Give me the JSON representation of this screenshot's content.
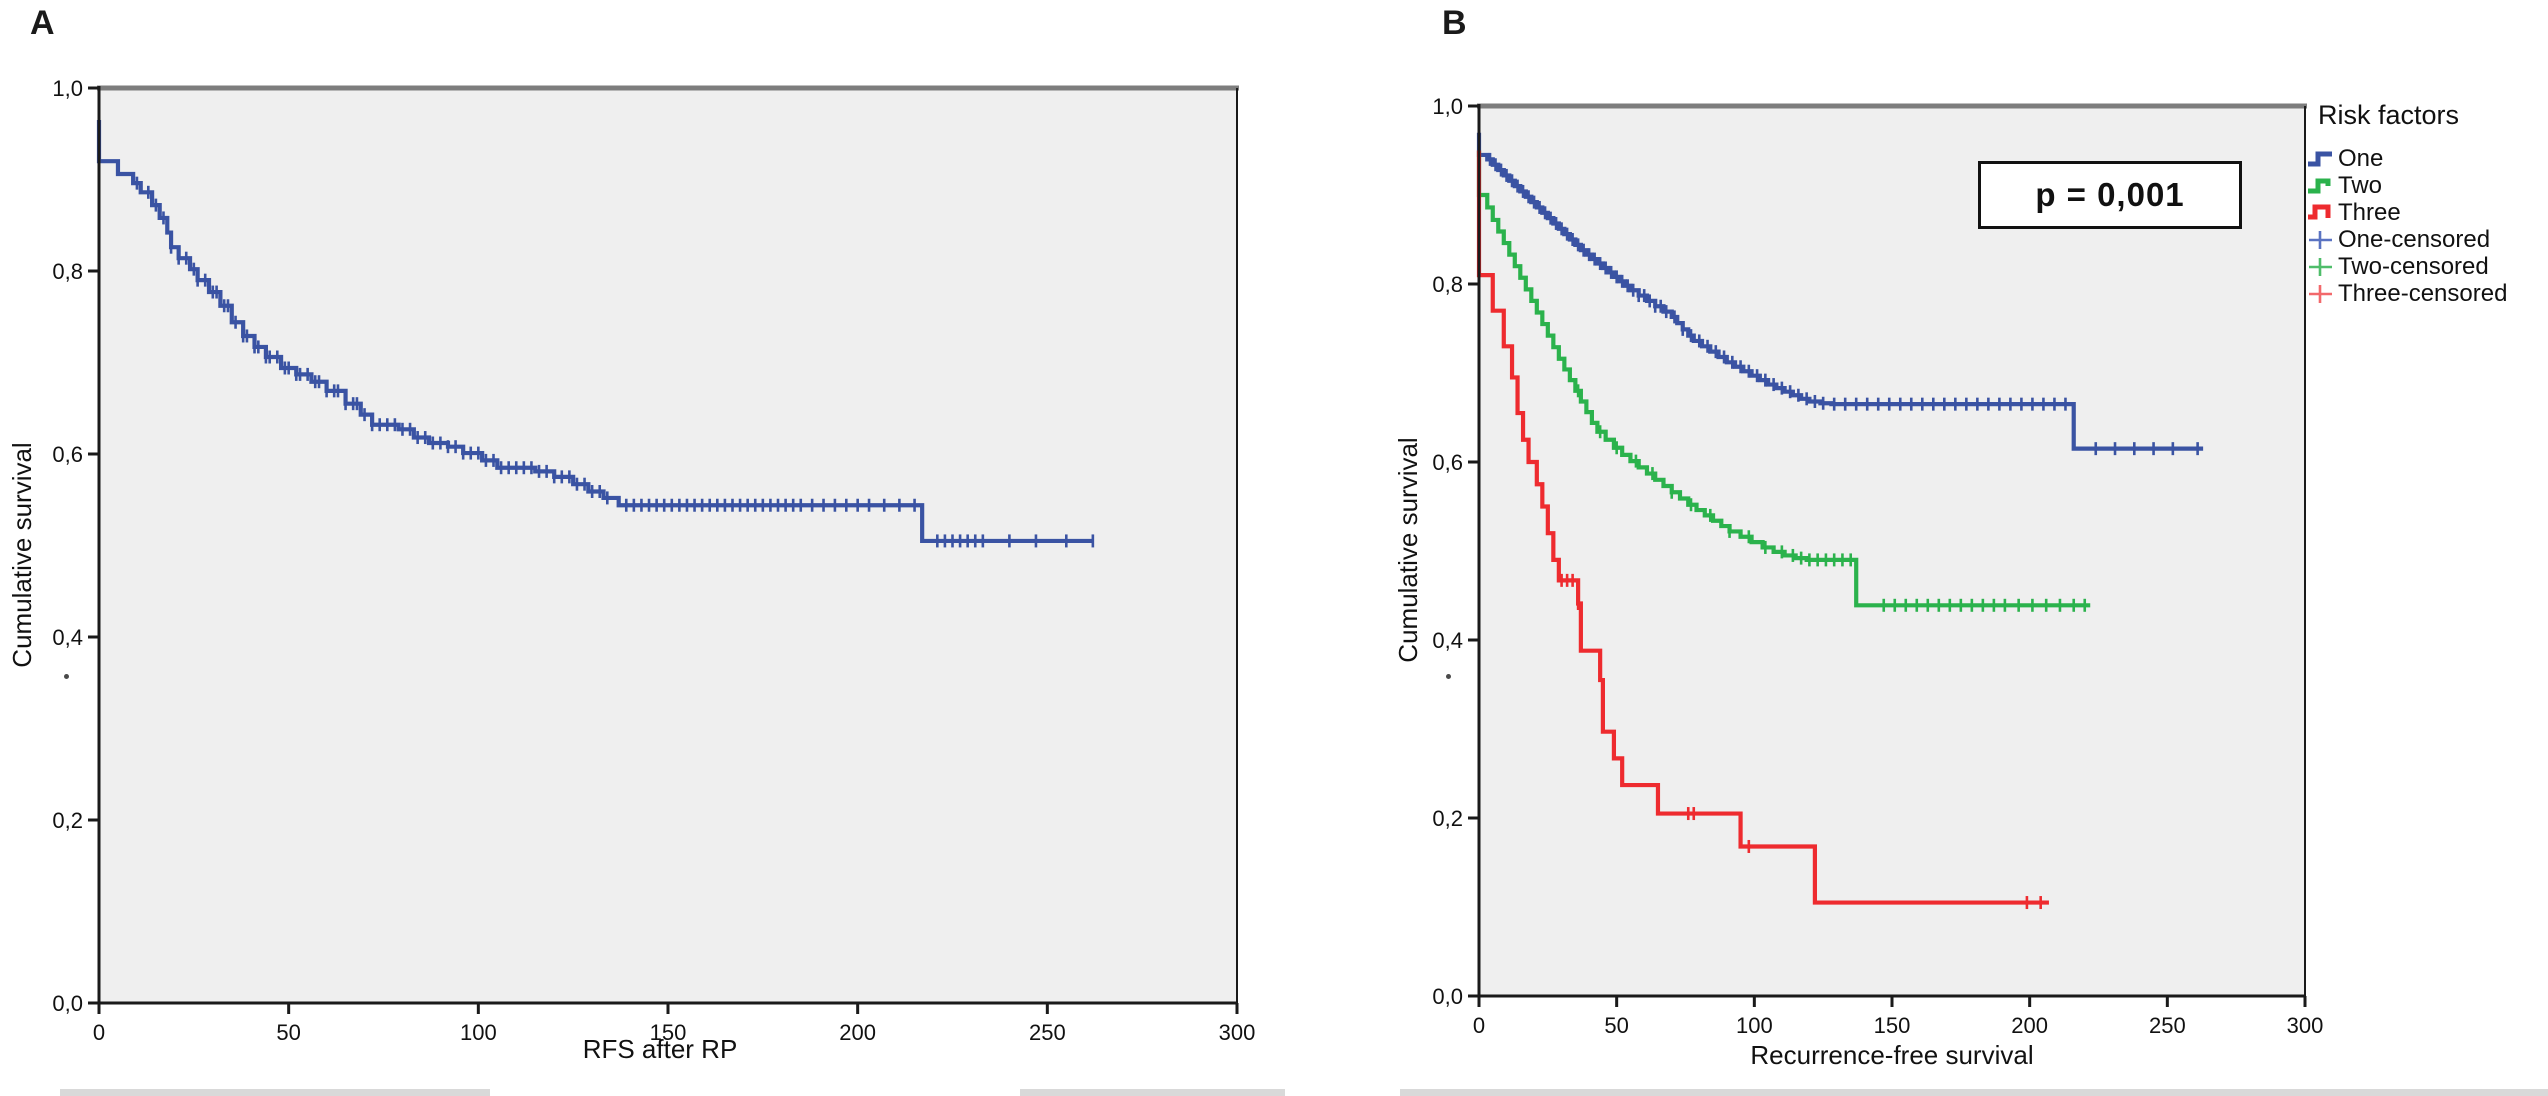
{
  "figure": {
    "background": "#ffffff",
    "plot_bg": "#efefef",
    "frame_color": "#1a1a1a",
    "top_frame_color": "#7d7d7d",
    "tick_label_color": "#111111"
  },
  "panels": [
    {
      "id": "A",
      "label": "A"
    },
    {
      "id": "B",
      "label": "B"
    }
  ],
  "legend": {
    "title": "Risk factors",
    "items": [
      {
        "label": "One",
        "marker": "step-one",
        "color": "#3a53a3"
      },
      {
        "label": "Two",
        "marker": "step-two",
        "color": "#2bb24c"
      },
      {
        "label": "Three",
        "marker": "step-three",
        "color": "#ee2b2f"
      },
      {
        "label": "One-censored",
        "marker": "plus",
        "color": "#5a73c2"
      },
      {
        "label": "Two-censored",
        "marker": "plus",
        "color": "#4fbd6a"
      },
      {
        "label": "Three-censored",
        "marker": "plus",
        "color": "#f2686b"
      }
    ]
  },
  "annotation": {
    "p_value_label": "p = 0,001"
  },
  "chart_data": [
    {
      "type": "line",
      "subtype": "kaplan-meier-step",
      "panel": "A",
      "title": "",
      "xlabel": "RFS after RP",
      "ylabel": "Cumulative survival",
      "xlim": [
        0,
        300
      ],
      "ylim": [
        0.0,
        1.0
      ],
      "grid": false,
      "x_ticks": [
        0,
        50,
        100,
        150,
        200,
        250,
        300
      ],
      "x_tick_labels": [
        "0",
        "50",
        "100",
        "150",
        "200",
        "250",
        "300"
      ],
      "y_ticks": [
        0.0,
        0.2,
        0.4,
        0.6,
        0.8,
        1.0
      ],
      "y_tick_labels": [
        "0,0",
        "0,2",
        "0,4",
        "0,6",
        "0,8",
        "1,0"
      ],
      "series": [
        {
          "name": "",
          "color": "#3a53a3",
          "start": 0.965,
          "steps": [
            [
              0,
              0.92
            ],
            [
              5,
              0.906
            ],
            [
              9,
              0.896
            ],
            [
              11,
              0.886
            ],
            [
              14,
              0.872
            ],
            [
              16,
              0.858
            ],
            [
              18,
              0.842
            ],
            [
              19,
              0.826
            ],
            [
              21,
              0.814
            ],
            [
              24,
              0.802
            ],
            [
              26,
              0.79
            ],
            [
              29,
              0.777
            ],
            [
              32,
              0.762
            ],
            [
              35,
              0.744
            ],
            [
              38,
              0.729
            ],
            [
              41,
              0.717
            ],
            [
              44,
              0.706
            ],
            [
              48,
              0.694
            ],
            [
              52,
              0.687
            ],
            [
              56,
              0.679
            ],
            [
              60,
              0.669
            ],
            [
              65,
              0.655
            ],
            [
              69,
              0.643
            ],
            [
              72,
              0.632
            ],
            [
              79,
              0.627
            ],
            [
              83,
              0.618
            ],
            [
              87,
              0.612
            ],
            [
              92,
              0.608
            ],
            [
              96,
              0.601
            ],
            [
              101,
              0.593
            ],
            [
              105,
              0.585
            ],
            [
              115,
              0.581
            ],
            [
              120,
              0.575
            ],
            [
              125,
              0.567
            ],
            [
              129,
              0.559
            ],
            [
              133,
              0.552
            ],
            [
              137,
              0.544
            ],
            [
              217,
              0.505
            ],
            [
              262,
              0.505
            ]
          ],
          "censor_x": [
            10,
            13,
            15,
            17,
            19,
            21,
            23,
            25,
            26,
            28,
            30,
            31,
            33,
            34,
            36,
            38,
            39,
            41,
            42,
            44,
            45,
            47,
            49,
            50,
            52,
            53,
            55,
            57,
            58,
            60,
            62,
            63,
            65,
            67,
            68,
            70,
            72,
            74,
            76,
            78,
            80,
            82,
            84,
            86,
            88,
            90,
            92,
            94,
            96,
            98,
            100,
            102,
            104,
            106,
            108,
            110,
            112,
            114,
            116,
            118,
            120,
            122,
            124,
            126,
            128,
            130,
            132,
            134,
            139,
            141,
            143,
            145,
            147,
            149,
            151,
            153,
            155,
            157,
            159,
            161,
            163,
            165,
            167,
            169,
            171,
            173,
            175,
            177,
            179,
            181,
            183,
            185,
            188,
            191,
            194,
            197,
            200,
            203,
            207,
            211,
            215,
            221,
            223,
            225,
            227,
            229,
            231,
            233,
            240,
            247,
            255,
            262
          ]
        }
      ]
    },
    {
      "type": "line",
      "subtype": "kaplan-meier-step",
      "panel": "B",
      "title": "",
      "legend_title": "Risk factors",
      "annotation": "p = 0,001",
      "xlabel": "Recurrence-free survival",
      "ylabel": "Cumulative survival",
      "xlim": [
        0,
        300
      ],
      "ylim": [
        0.0,
        1.0
      ],
      "grid": false,
      "x_ticks": [
        0,
        50,
        100,
        150,
        200,
        250,
        300
      ],
      "x_tick_labels": [
        "0",
        "50",
        "100",
        "150",
        "200",
        "250",
        "300"
      ],
      "y_ticks": [
        0.0,
        0.2,
        0.4,
        0.6,
        0.8,
        1.0
      ],
      "y_tick_labels": [
        "0,0",
        "0,2",
        "0,4",
        "0,6",
        "0,8",
        "1,0"
      ],
      "series": [
        {
          "name": "One",
          "color": "#3a53a3",
          "start": 0.97,
          "steps": [
            [
              0,
              0.945
            ],
            [
              3,
              0.94
            ],
            [
              5,
              0.934
            ],
            [
              7,
              0.928
            ],
            [
              9,
              0.922
            ],
            [
              11,
              0.916
            ],
            [
              13,
              0.91
            ],
            [
              15,
              0.904
            ],
            [
              17,
              0.898
            ],
            [
              19,
              0.892
            ],
            [
              21,
              0.886
            ],
            [
              23,
              0.88
            ],
            [
              25,
              0.874
            ],
            [
              27,
              0.868
            ],
            [
              29,
              0.862
            ],
            [
              31,
              0.856
            ],
            [
              33,
              0.85
            ],
            [
              35,
              0.844
            ],
            [
              37,
              0.838
            ],
            [
              39,
              0.833
            ],
            [
              41,
              0.828
            ],
            [
              43,
              0.823
            ],
            [
              45,
              0.818
            ],
            [
              47,
              0.813
            ],
            [
              49,
              0.808
            ],
            [
              51,
              0.803
            ],
            [
              53,
              0.798
            ],
            [
              55,
              0.793
            ],
            [
              58,
              0.787
            ],
            [
              61,
              0.781
            ],
            [
              64,
              0.775
            ],
            [
              67,
              0.769
            ],
            [
              70,
              0.763
            ],
            [
              72,
              0.756
            ],
            [
              74,
              0.749
            ],
            [
              76,
              0.742
            ],
            [
              78,
              0.736
            ],
            [
              81,
              0.73
            ],
            [
              84,
              0.724
            ],
            [
              87,
              0.718
            ],
            [
              90,
              0.712
            ],
            [
              93,
              0.707
            ],
            [
              96,
              0.702
            ],
            [
              99,
              0.697
            ],
            [
              102,
              0.692
            ],
            [
              105,
              0.687
            ],
            [
              108,
              0.683
            ],
            [
              111,
              0.679
            ],
            [
              114,
              0.675
            ],
            [
              117,
              0.671
            ],
            [
              120,
              0.668
            ],
            [
              124,
              0.666
            ],
            [
              128,
              0.665
            ],
            [
              216,
              0.615
            ],
            [
              263,
              0.615
            ]
          ],
          "censor_x": [
            4,
            6,
            8,
            10,
            12,
            14,
            16,
            18,
            20,
            22,
            24,
            26,
            28,
            30,
            32,
            34,
            36,
            38,
            40,
            42,
            44,
            46,
            48,
            50,
            52,
            54,
            56,
            58,
            60,
            62,
            64,
            66,
            68,
            71,
            74,
            77,
            80,
            83,
            86,
            89,
            92,
            95,
            98,
            101,
            104,
            107,
            110,
            113,
            116,
            119,
            122,
            125,
            129,
            133,
            137,
            141,
            145,
            149,
            153,
            157,
            161,
            165,
            169,
            173,
            177,
            181,
            185,
            189,
            193,
            197,
            201,
            205,
            209,
            213,
            224,
            231,
            238,
            245,
            252,
            261
          ]
        },
        {
          "name": "Two",
          "color": "#2bb24c",
          "start": 0.95,
          "steps": [
            [
              0,
              0.9
            ],
            [
              3,
              0.886
            ],
            [
              5,
              0.872
            ],
            [
              7,
              0.859
            ],
            [
              9,
              0.846
            ],
            [
              11,
              0.833
            ],
            [
              13,
              0.82
            ],
            [
              15,
              0.807
            ],
            [
              17,
              0.794
            ],
            [
              19,
              0.781
            ],
            [
              21,
              0.768
            ],
            [
              23,
              0.755
            ],
            [
              25,
              0.742
            ],
            [
              27,
              0.729
            ],
            [
              29,
              0.716
            ],
            [
              31,
              0.704
            ],
            [
              33,
              0.692
            ],
            [
              35,
              0.68
            ],
            [
              37,
              0.668
            ],
            [
              39,
              0.656
            ],
            [
              41,
              0.644
            ],
            [
              43,
              0.634
            ],
            [
              46,
              0.625
            ],
            [
              49,
              0.616
            ],
            [
              52,
              0.608
            ],
            [
              55,
              0.601
            ],
            [
              58,
              0.594
            ],
            [
              61,
              0.587
            ],
            [
              64,
              0.58
            ],
            [
              67,
              0.573
            ],
            [
              70,
              0.566
            ],
            [
              73,
              0.559
            ],
            [
              76,
              0.552
            ],
            [
              79,
              0.546
            ],
            [
              82,
              0.54
            ],
            [
              85,
              0.534
            ],
            [
              88,
              0.528
            ],
            [
              91,
              0.522
            ],
            [
              95,
              0.516
            ],
            [
              99,
              0.51
            ],
            [
              103,
              0.504
            ],
            [
              107,
              0.499
            ],
            [
              111,
              0.495
            ],
            [
              115,
              0.492
            ],
            [
              119,
              0.49
            ],
            [
              137,
              0.439
            ],
            [
              222,
              0.439
            ]
          ],
          "censor_x": [
            36,
            44,
            50,
            57,
            63,
            70,
            77,
            84,
            91,
            98,
            104,
            110,
            114,
            117,
            120,
            123,
            126,
            129,
            132,
            135,
            147,
            151,
            155,
            159,
            163,
            167,
            171,
            175,
            179,
            183,
            187,
            191,
            196,
            201,
            206,
            211,
            216,
            220
          ]
        },
        {
          "name": "Three",
          "color": "#ee2b2f",
          "start": 0.95,
          "steps": [
            [
              0,
              0.81
            ],
            [
              5,
              0.77
            ],
            [
              9,
              0.73
            ],
            [
              12,
              0.695
            ],
            [
              14,
              0.655
            ],
            [
              16,
              0.625
            ],
            [
              18,
              0.6
            ],
            [
              21,
              0.575
            ],
            [
              23,
              0.55
            ],
            [
              25,
              0.52
            ],
            [
              27,
              0.49
            ],
            [
              29,
              0.467
            ],
            [
              36,
              0.441
            ],
            [
              37,
              0.388
            ],
            [
              44,
              0.355
            ],
            [
              45,
              0.297
            ],
            [
              49,
              0.267
            ],
            [
              52,
              0.237
            ],
            [
              65,
              0.205
            ],
            [
              95,
              0.168
            ],
            [
              122,
              0.105
            ],
            [
              207,
              0.105
            ]
          ],
          "censor_x": [
            30,
            32,
            34,
            36,
            76,
            78,
            98,
            199,
            204
          ]
        }
      ]
    }
  ]
}
